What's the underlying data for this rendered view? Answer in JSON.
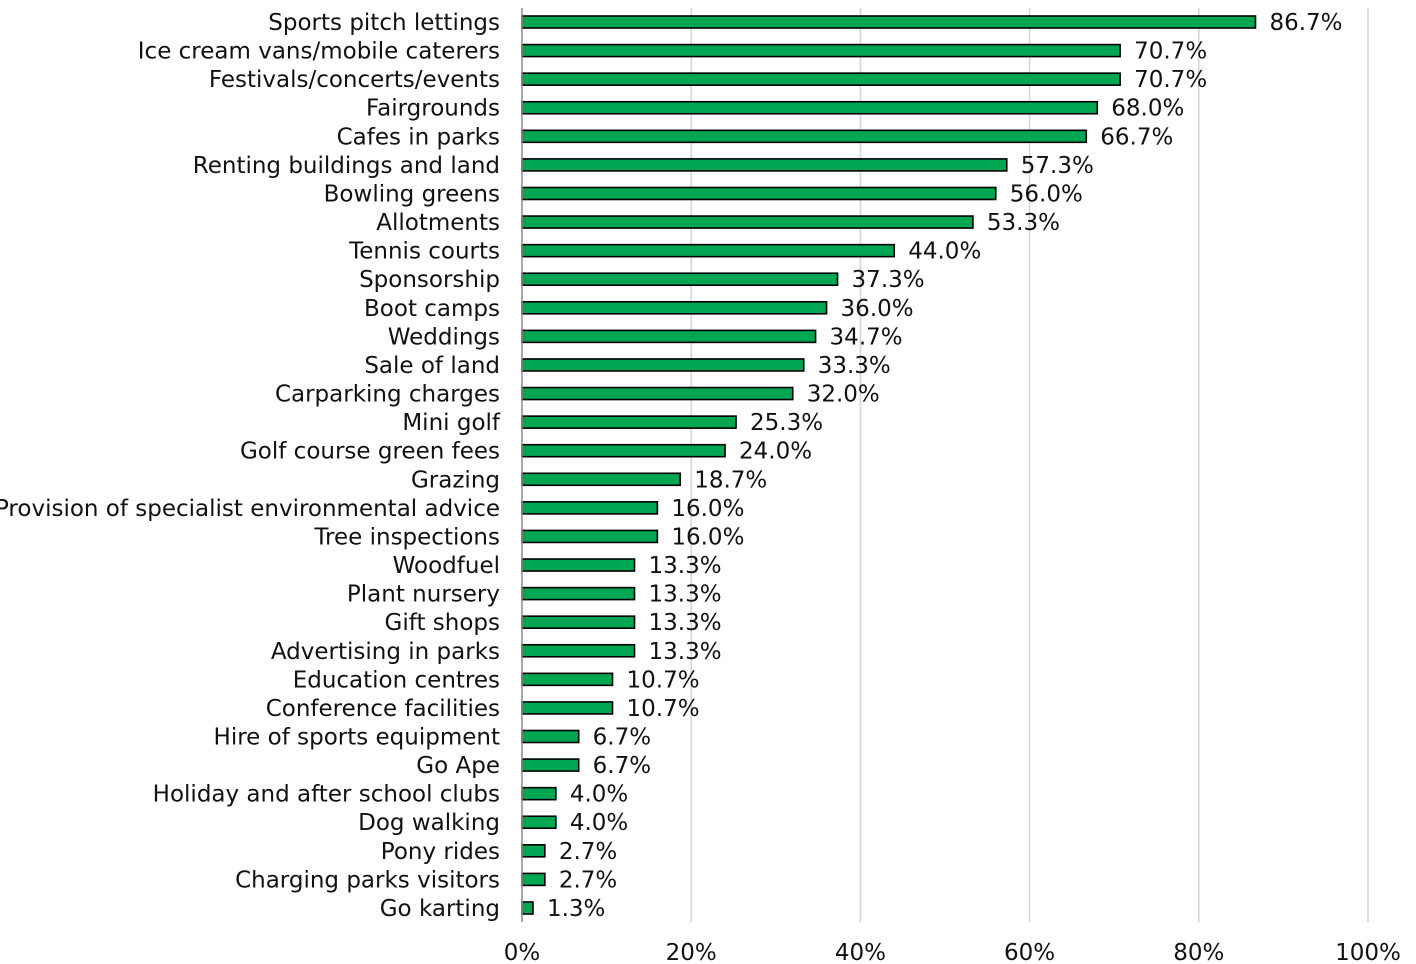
{
  "chart_data": {
    "type": "bar",
    "orientation": "horizontal",
    "title": "",
    "xlabel": "",
    "ylabel": "",
    "categories": [
      "Sports pitch lettings",
      "Ice cream vans/mobile caterers",
      "Festivals/concerts/events",
      "Fairgrounds",
      "Cafes in parks",
      "Renting buildings and land",
      "Bowling greens",
      "Allotments",
      "Tennis courts",
      "Sponsorship",
      "Boot camps",
      "Weddings",
      "Sale of land",
      "Carparking charges",
      "Mini golf",
      "Golf course green fees",
      "Grazing",
      "Provision of specialist environmental advice",
      "Tree inspections",
      "Woodfuel",
      "Plant nursery",
      "Gift shops",
      "Advertising in parks",
      "Education centres",
      "Conference facilities",
      "Hire of sports equipment",
      "Go Ape",
      "Holiday and after school clubs",
      "Dog walking",
      "Pony rides",
      "Charging parks visitors",
      "Go karting"
    ],
    "values": [
      86.7,
      70.7,
      70.7,
      68.0,
      66.7,
      57.3,
      56.0,
      53.3,
      44.0,
      37.3,
      36.0,
      34.7,
      33.3,
      32.0,
      25.3,
      24.0,
      18.7,
      16.0,
      16.0,
      13.3,
      13.3,
      13.3,
      13.3,
      10.7,
      10.7,
      6.7,
      6.7,
      4.0,
      4.0,
      2.7,
      2.7,
      1.3
    ],
    "value_labels": [
      "86.7%",
      "70.7%",
      "70.7%",
      "68.0%",
      "66.7%",
      "57.3%",
      "56.0%",
      "53.3%",
      "44.0%",
      "37.3%",
      "36.0%",
      "34.7%",
      "33.3%",
      "32.0%",
      "25.3%",
      "24.0%",
      "18.7%",
      "16.0%",
      "16.0%",
      "13.3%",
      "13.3%",
      "13.3%",
      "13.3%",
      "10.7%",
      "10.7%",
      "6.7%",
      "6.7%",
      "4.0%",
      "4.0%",
      "2.7%",
      "2.7%",
      "1.3%"
    ],
    "xlim": [
      0,
      100
    ],
    "xticks": [
      0,
      20,
      40,
      60,
      80,
      100
    ],
    "xtick_labels": [
      "0%",
      "20%",
      "40%",
      "60%",
      "80%",
      "100%"
    ],
    "grid": true,
    "legend": "none",
    "bar_color": "#00a651",
    "bar_border_color": "#000000"
  }
}
